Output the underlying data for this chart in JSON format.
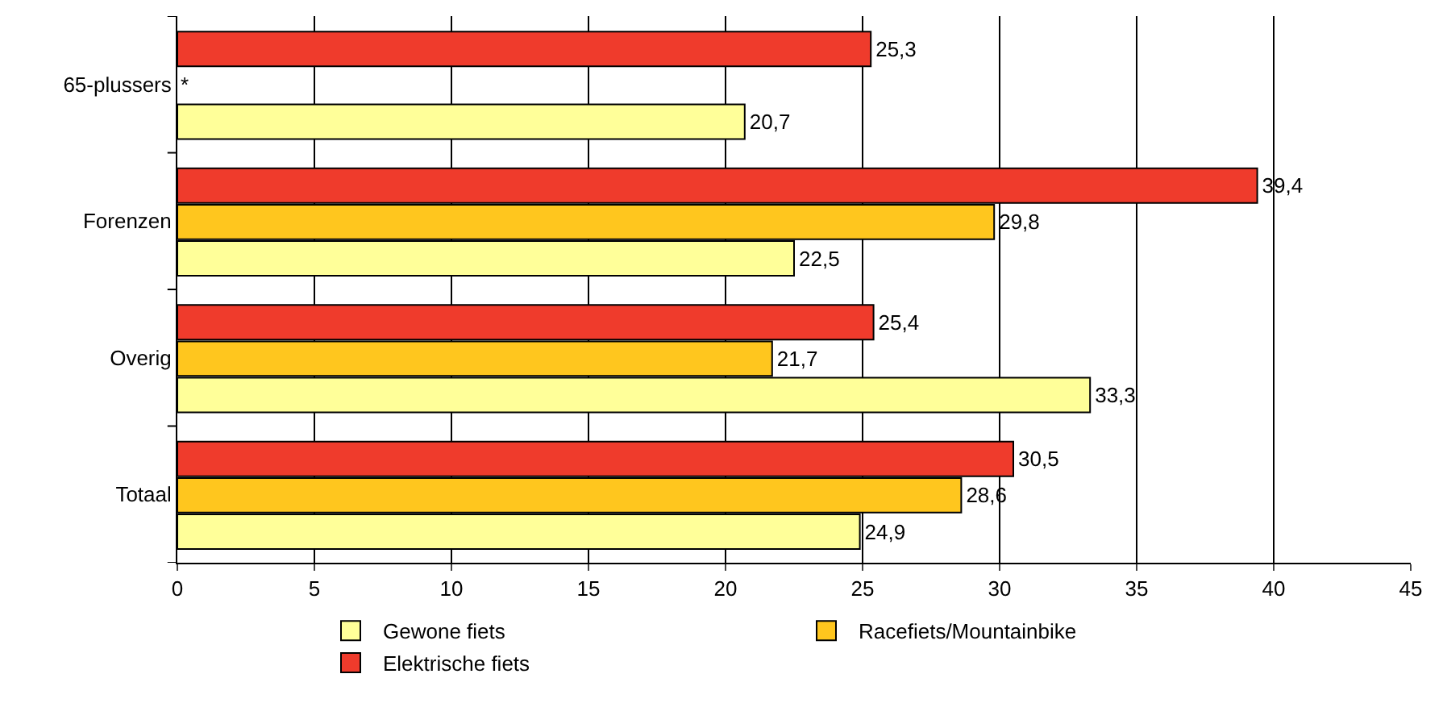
{
  "chart_data": {
    "type": "bar",
    "orientation": "horizontal",
    "categories": [
      "65-plussers",
      "Forenzen",
      "Overig",
      "Totaal"
    ],
    "series": [
      {
        "name": "Gewone fiets",
        "color": "#ffff99",
        "values": [
          20.7,
          22.5,
          33.3,
          24.9
        ],
        "value_labels": [
          "20,7",
          "22,5",
          "33,3",
          "24,9"
        ]
      },
      {
        "name": "Racefiets/Mountainbike",
        "color": "#ffc61e",
        "values": [
          null,
          29.8,
          21.7,
          28.6
        ],
        "value_labels": [
          "*",
          "29,8",
          "21,7",
          "28,6"
        ]
      },
      {
        "name": "Elektrische fiets",
        "color": "#ef3b2c",
        "values": [
          25.3,
          39.4,
          25.4,
          30.5
        ],
        "value_labels": [
          "25,3",
          "39,4",
          "25,4",
          "30,5"
        ]
      }
    ],
    "xlim": [
      0,
      45
    ],
    "xticks": [
      0,
      5,
      10,
      15,
      20,
      25,
      30,
      35,
      40,
      45
    ],
    "grid": "x",
    "legend": "bottom"
  }
}
